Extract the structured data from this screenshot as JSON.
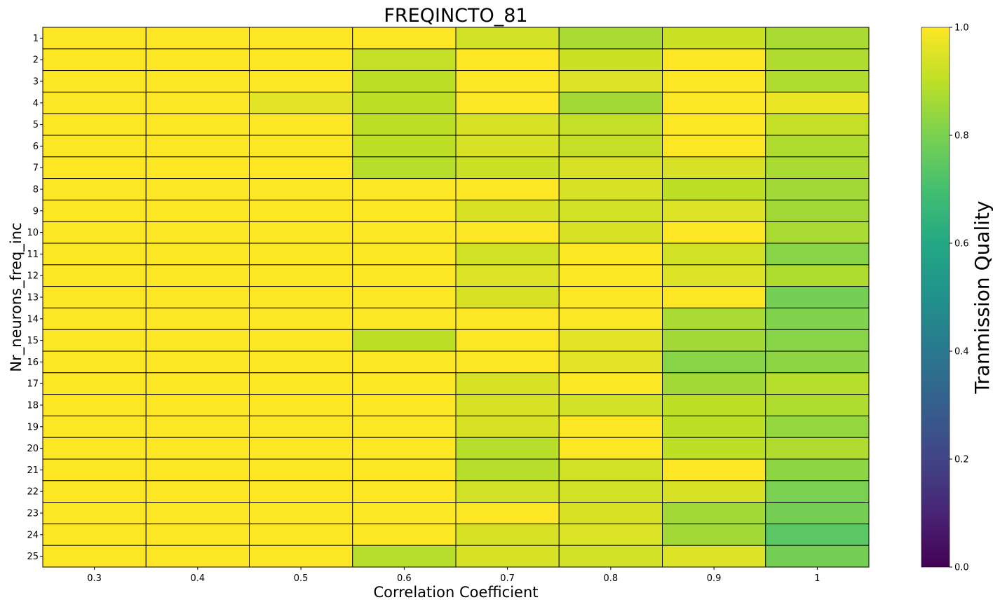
{
  "chart_data": {
    "type": "heatmap",
    "title": "FREQINCTO_81",
    "xlabel": "Correlation Coefficient",
    "ylabel": "Nr_neurons_freq_inc",
    "x_ticks": [
      "0.3",
      "0.4",
      "0.5",
      "0.6",
      "0.7",
      "0.8",
      "0.9",
      "1"
    ],
    "y_ticks": [
      "1",
      "2",
      "3",
      "4",
      "5",
      "6",
      "7",
      "8",
      "9",
      "10",
      "11",
      "12",
      "13",
      "14",
      "15",
      "16",
      "17",
      "18",
      "19",
      "20",
      "21",
      "22",
      "23",
      "24",
      "25"
    ],
    "colorbar": {
      "label": "Tranmission Quality",
      "range": [
        0,
        1
      ],
      "ticks": [
        "0.0",
        "0.2",
        "0.4",
        "0.6",
        "0.8",
        "1.0"
      ],
      "colormap": "viridis"
    },
    "values": [
      [
        1.0,
        1.0,
        1.0,
        1.0,
        0.93,
        0.87,
        0.92,
        0.87
      ],
      [
        1.0,
        1.0,
        1.0,
        0.91,
        1.0,
        0.92,
        1.0,
        0.88
      ],
      [
        1.0,
        1.0,
        1.0,
        0.9,
        1.0,
        0.95,
        1.0,
        0.88
      ],
      [
        1.0,
        1.0,
        0.96,
        0.9,
        1.0,
        0.86,
        1.0,
        0.97
      ],
      [
        1.0,
        1.0,
        1.0,
        0.9,
        0.94,
        0.91,
        1.0,
        0.91
      ],
      [
        1.0,
        1.0,
        1.0,
        0.9,
        0.94,
        0.91,
        1.0,
        0.88
      ],
      [
        1.0,
        1.0,
        1.0,
        0.89,
        0.92,
        0.94,
        0.94,
        0.87
      ],
      [
        1.0,
        1.0,
        1.0,
        1.0,
        1.0,
        0.94,
        0.9,
        0.86
      ],
      [
        1.0,
        1.0,
        1.0,
        1.0,
        0.94,
        0.93,
        0.95,
        0.86
      ],
      [
        1.0,
        1.0,
        1.0,
        1.0,
        1.0,
        0.94,
        1.0,
        0.87
      ],
      [
        1.0,
        1.0,
        1.0,
        1.0,
        0.93,
        1.0,
        0.93,
        0.82
      ],
      [
        1.0,
        1.0,
        1.0,
        1.0,
        0.95,
        1.0,
        0.95,
        0.88
      ],
      [
        1.0,
        1.0,
        1.0,
        1.0,
        0.94,
        1.0,
        1.0,
        0.79
      ],
      [
        1.0,
        1.0,
        1.0,
        1.0,
        1.0,
        1.0,
        0.87,
        0.81
      ],
      [
        1.0,
        1.0,
        1.0,
        0.9,
        1.0,
        0.96,
        0.86,
        0.82
      ],
      [
        1.0,
        1.0,
        1.0,
        1.0,
        1.0,
        0.96,
        0.82,
        0.83
      ],
      [
        1.0,
        1.0,
        1.0,
        1.0,
        0.94,
        1.0,
        0.86,
        0.89
      ],
      [
        1.0,
        1.0,
        1.0,
        1.0,
        0.94,
        0.93,
        0.9,
        0.88
      ],
      [
        1.0,
        1.0,
        1.0,
        1.0,
        0.94,
        1.0,
        0.9,
        0.84
      ],
      [
        1.0,
        1.0,
        1.0,
        1.0,
        0.89,
        1.0,
        0.9,
        0.88
      ],
      [
        1.0,
        1.0,
        1.0,
        1.0,
        0.89,
        0.93,
        1.0,
        0.83
      ],
      [
        1.0,
        1.0,
        1.0,
        1.0,
        0.93,
        0.93,
        0.94,
        0.8
      ],
      [
        1.0,
        1.0,
        1.0,
        1.0,
        1.0,
        0.94,
        0.86,
        0.79
      ],
      [
        1.0,
        1.0,
        1.0,
        1.0,
        0.94,
        0.95,
        0.86,
        0.74
      ],
      [
        1.0,
        1.0,
        1.0,
        0.89,
        0.94,
        0.93,
        0.95,
        0.79
      ]
    ]
  }
}
